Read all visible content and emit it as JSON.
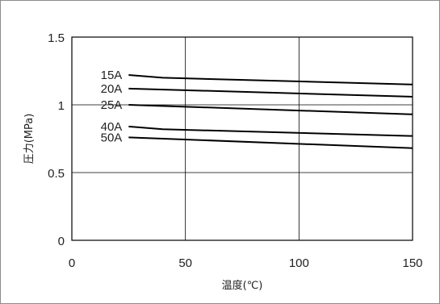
{
  "chart_data": {
    "type": "line",
    "xlabel": "温度(℃)",
    "ylabel": "圧力(MPa)",
    "xlim": [
      0,
      150
    ],
    "ylim": [
      0,
      1.5
    ],
    "xticks": [
      0,
      50,
      100,
      150
    ],
    "yticks": [
      0,
      0.5,
      1,
      1.5
    ],
    "xtick_labels": [
      "0",
      "50",
      "100",
      "150"
    ],
    "ytick_labels": [
      "0",
      "0.5",
      "1",
      "1.5"
    ],
    "grid": true,
    "series": [
      {
        "name": "15A",
        "x": [
          25,
          40,
          150
        ],
        "y": [
          1.22,
          1.2,
          1.15
        ]
      },
      {
        "name": "20A",
        "x": [
          25,
          150
        ],
        "y": [
          1.12,
          1.06
        ]
      },
      {
        "name": "25A",
        "x": [
          25,
          150
        ],
        "y": [
          1.0,
          0.93
        ]
      },
      {
        "name": "40A",
        "x": [
          25,
          40,
          150
        ],
        "y": [
          0.84,
          0.82,
          0.77
        ]
      },
      {
        "name": "50A",
        "x": [
          25,
          150
        ],
        "y": [
          0.76,
          0.68
        ]
      }
    ]
  }
}
